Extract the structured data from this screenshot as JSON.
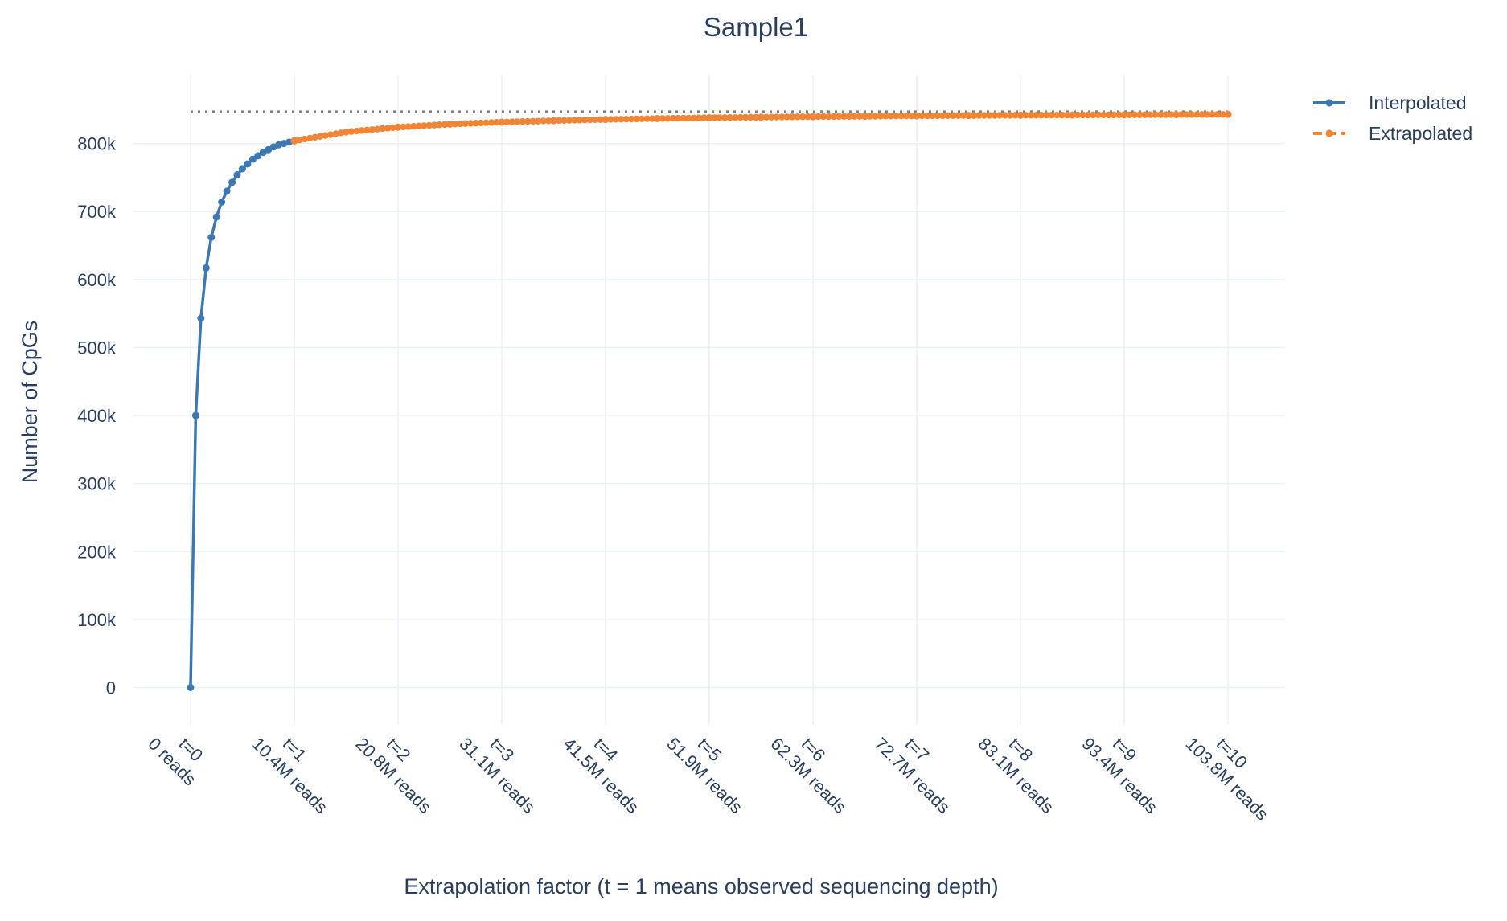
{
  "chart_data": {
    "type": "line",
    "title": "Sample1",
    "xlabel": "Extrapolation factor (t = 1 means observed sequencing depth)",
    "ylabel": "Number of CpGs",
    "xlim": [
      -0.55,
      10.55
    ],
    "ylim": [
      -55000,
      900000
    ],
    "grid": true,
    "legend_position": "top-right",
    "x_ticks": [
      {
        "value": 0,
        "line1": "t=0",
        "line2": "0 reads"
      },
      {
        "value": 1,
        "line1": "t=1",
        "line2": "10.4M reads"
      },
      {
        "value": 2,
        "line1": "t=2",
        "line2": "20.8M reads"
      },
      {
        "value": 3,
        "line1": "t=3",
        "line2": "31.1M reads"
      },
      {
        "value": 4,
        "line1": "t=4",
        "line2": "41.5M reads"
      },
      {
        "value": 5,
        "line1": "t=5",
        "line2": "51.9M reads"
      },
      {
        "value": 6,
        "line1": "t=6",
        "line2": "62.3M reads"
      },
      {
        "value": 7,
        "line1": "t=7",
        "line2": "72.7M reads"
      },
      {
        "value": 8,
        "line1": "t=8",
        "line2": "83.1M reads"
      },
      {
        "value": 9,
        "line1": "t=9",
        "line2": "93.4M reads"
      },
      {
        "value": 10,
        "line1": "t=10",
        "line2": "103.8M reads"
      }
    ],
    "y_ticks": [
      {
        "value": 0,
        "label": "0"
      },
      {
        "value": 100000,
        "label": "100k"
      },
      {
        "value": 200000,
        "label": "200k"
      },
      {
        "value": 300000,
        "label": "300k"
      },
      {
        "value": 400000,
        "label": "400k"
      },
      {
        "value": 500000,
        "label": "500k"
      },
      {
        "value": 600000,
        "label": "600k"
      },
      {
        "value": 700000,
        "label": "700k"
      },
      {
        "value": 800000,
        "label": "800k"
      }
    ],
    "reference_line": {
      "y": 847000,
      "style": "dotted",
      "color": "#7f7f7f"
    },
    "series": [
      {
        "name": "Interpolated",
        "color": "#3c78b4",
        "dash": "solid",
        "x": [
          0,
          0.05,
          0.1,
          0.15,
          0.2,
          0.25,
          0.3,
          0.35,
          0.4,
          0.45,
          0.5,
          0.55,
          0.6,
          0.65,
          0.7,
          0.75,
          0.8,
          0.85,
          0.9,
          0.95,
          1.0
        ],
        "y": [
          0,
          400000,
          543000,
          617000,
          662000,
          692000,
          714000,
          730000,
          743000,
          754000,
          763000,
          770000,
          777000,
          782000,
          787000,
          791000,
          795000,
          798000,
          800000,
          802000,
          804000
        ]
      },
      {
        "name": "Extrapolated",
        "color": "#f08535",
        "dash": "dash",
        "x": [
          1.0,
          1.5,
          2.0,
          2.5,
          3.0,
          3.5,
          4.0,
          4.5,
          5.0,
          5.5,
          6.0,
          6.5,
          7.0,
          7.5,
          8.0,
          8.5,
          9.0,
          9.5,
          10.0
        ],
        "y": [
          804000,
          817000,
          824000,
          828500,
          831500,
          833700,
          835400,
          836800,
          837900,
          838800,
          839600,
          840200,
          840800,
          841300,
          841700,
          842000,
          842300,
          842600,
          842900
        ]
      }
    ]
  }
}
